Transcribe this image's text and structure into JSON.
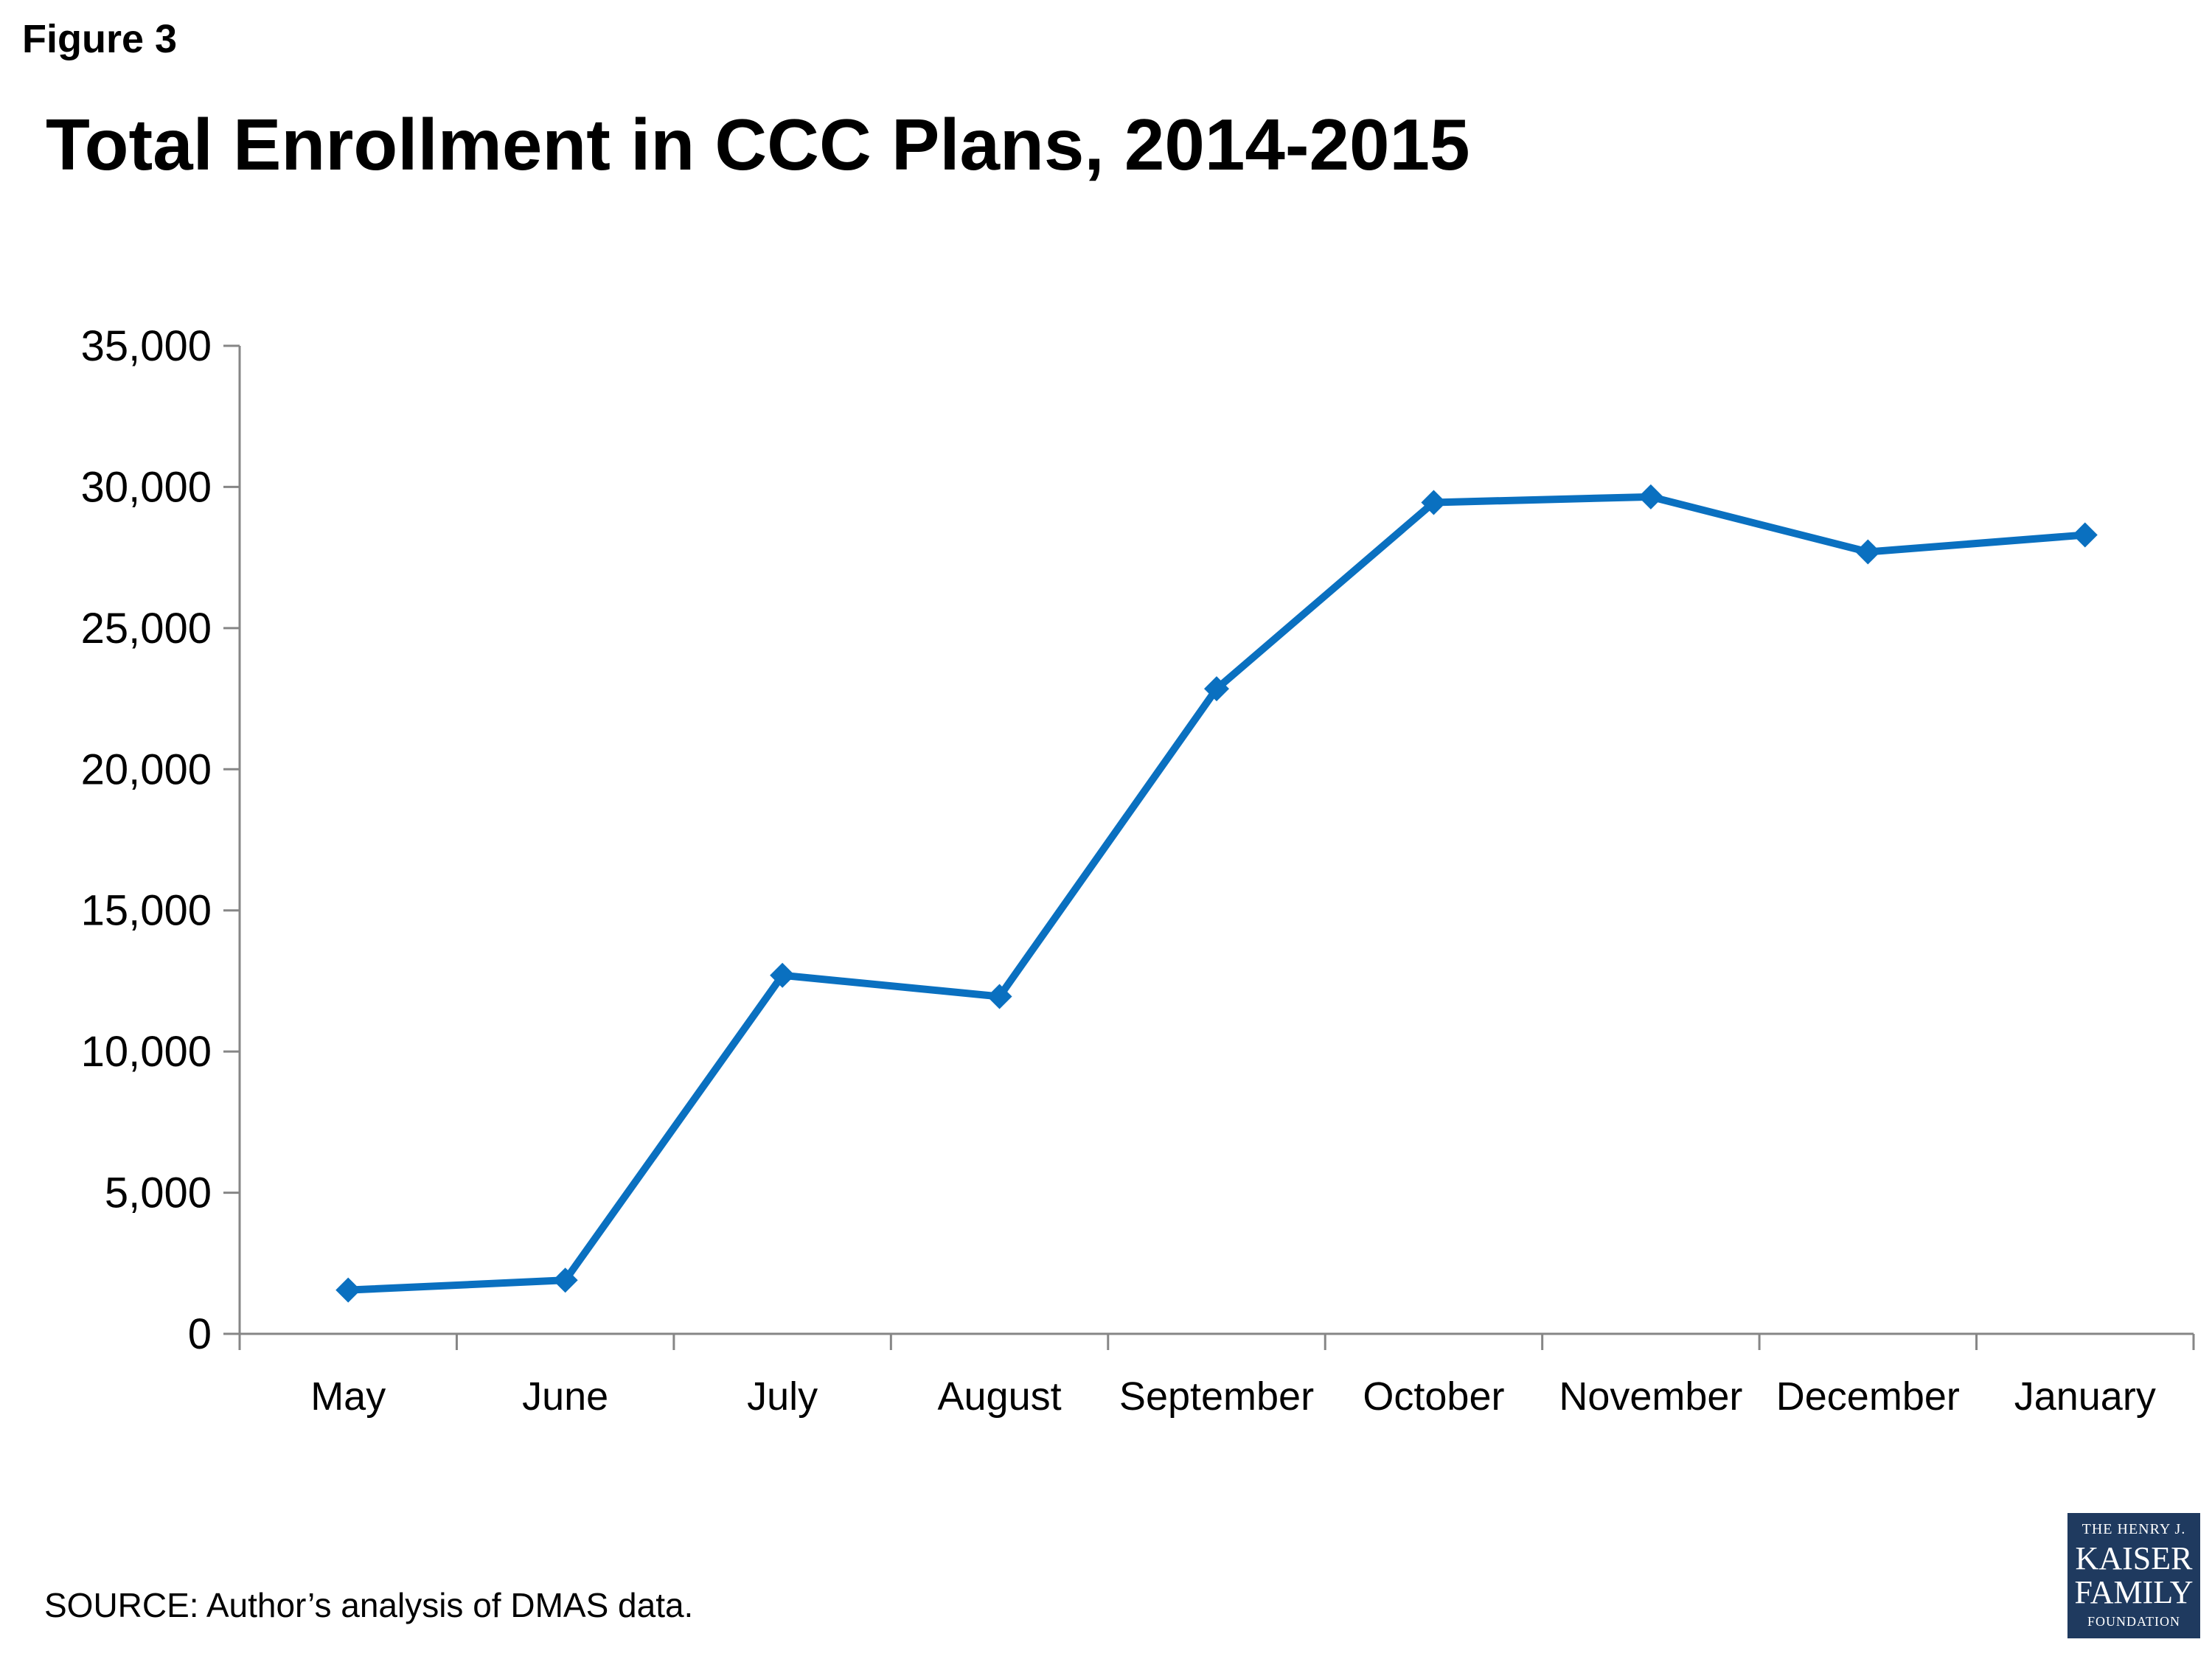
{
  "figure_label": "Figure 3",
  "source_note": "SOURCE: Author’s analysis of DMAS data.",
  "logo": {
    "line1": "THE HENRY J.",
    "line2": "KAISER",
    "line3": "FAMILY",
    "line4": "FOUNDATION"
  },
  "chart_data": {
    "type": "line",
    "title": "Total Enrollment in CCC Plans, 2014-2015",
    "xlabel": "",
    "ylabel": "",
    "categories": [
      "May",
      "June",
      "July",
      "August",
      "September",
      "October",
      "November",
      "December",
      "January"
    ],
    "series": [
      {
        "values": [
          1550,
          1900,
          12700,
          11950,
          22850,
          29450,
          29650,
          27700,
          28300
        ]
      }
    ],
    "ylim": [
      0,
      35000
    ],
    "yticks": [
      0,
      5000,
      10000,
      15000,
      20000,
      25000,
      30000,
      35000
    ],
    "ytick_labels": [
      "0",
      "5,000",
      "10,000",
      "15,000",
      "20,000",
      "25,000",
      "30,000",
      "35,000"
    ],
    "grid": false,
    "legend": "none",
    "line_color": "#0a70c0",
    "marker": "diamond"
  }
}
